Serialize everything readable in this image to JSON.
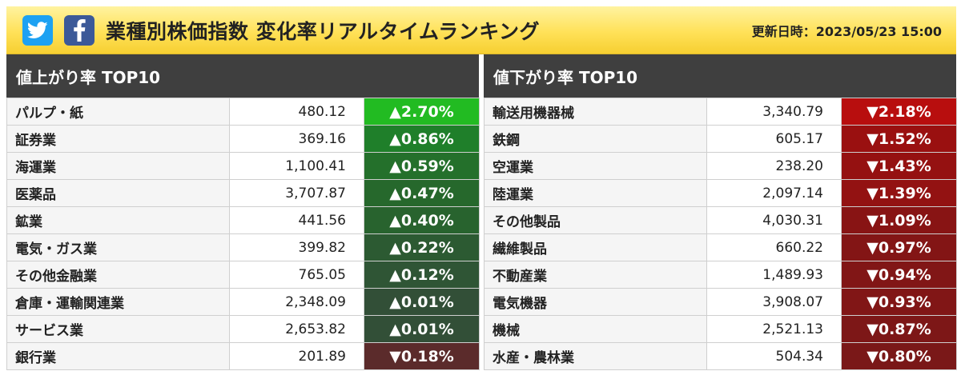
{
  "header": {
    "title": "業種別株価指数 変化率リアルタイムランキング",
    "updated": "更新日時：2023/05/23 15:00",
    "icons": [
      "twitter-icon",
      "facebook-icon"
    ]
  },
  "gainers": {
    "heading": "値上がり率 TOP10",
    "rows": [
      {
        "name": "パルプ・紙",
        "value": "480.12",
        "change": "▲2.70%",
        "color": "#22bb22"
      },
      {
        "name": "証券業",
        "value": "369.16",
        "change": "▲0.86%",
        "color": "#1f7f2a"
      },
      {
        "name": "海運業",
        "value": "1,100.41",
        "change": "▲0.59%",
        "color": "#24702b"
      },
      {
        "name": "医薬品",
        "value": "3,707.87",
        "change": "▲0.47%",
        "color": "#26682c"
      },
      {
        "name": "鉱業",
        "value": "441.56",
        "change": "▲0.40%",
        "color": "#28632e"
      },
      {
        "name": "電気・ガス業",
        "value": "399.82",
        "change": "▲0.22%",
        "color": "#2c5a32"
      },
      {
        "name": "その他金融業",
        "value": "765.05",
        "change": "▲0.12%",
        "color": "#2f5535"
      },
      {
        "name": "倉庫・運輸関連業",
        "value": "2,348.09",
        "change": "▲0.01%",
        "color": "#324f37"
      },
      {
        "name": "サービス業",
        "value": "2,653.82",
        "change": "▲0.01%",
        "color": "#324f37"
      },
      {
        "name": "銀行業",
        "value": "201.89",
        "change": "▼0.18%",
        "color": "#5b2b2b"
      }
    ]
  },
  "losers": {
    "heading": "値下がり率 TOP10",
    "rows": [
      {
        "name": "輸送用機器械",
        "value": "3,340.79",
        "change": "▼2.18%",
        "color": "#b80e0e"
      },
      {
        "name": "鉄鋼",
        "value": "605.17",
        "change": "▼1.52%",
        "color": "#9a1010"
      },
      {
        "name": "空運業",
        "value": "238.20",
        "change": "▼1.43%",
        "color": "#951111"
      },
      {
        "name": "陸運業",
        "value": "2,097.14",
        "change": "▼1.39%",
        "color": "#931212"
      },
      {
        "name": "その他製品",
        "value": "4,030.31",
        "change": "▼1.09%",
        "color": "#881414"
      },
      {
        "name": "繊維製品",
        "value": "660.22",
        "change": "▼0.97%",
        "color": "#831515"
      },
      {
        "name": "不動産業",
        "value": "1,489.93",
        "change": "▼0.94%",
        "color": "#811616"
      },
      {
        "name": "電気機器",
        "value": "3,908.07",
        "change": "▼0.93%",
        "color": "#811616"
      },
      {
        "name": "機械",
        "value": "2,521.13",
        "change": "▼0.87%",
        "color": "#7d1717"
      },
      {
        "name": "水産・農林業",
        "value": "504.34",
        "change": "▼0.80%",
        "color": "#7a1818"
      }
    ]
  }
}
